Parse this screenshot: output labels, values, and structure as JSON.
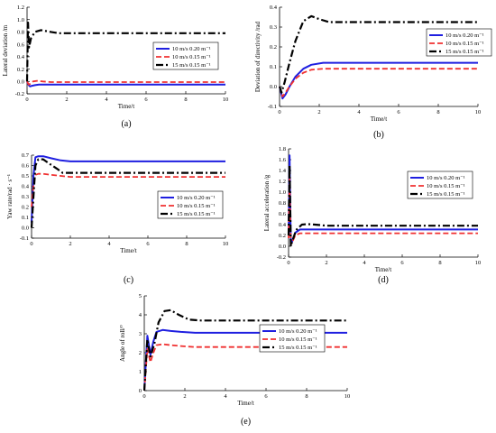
{
  "colors": {
    "s1": "#1f1fe0",
    "s2": "#f03030",
    "s3": "#000000"
  },
  "chart_data": [
    {
      "type": "line",
      "caption": "(a)",
      "xlabel": "Time/t",
      "ylabel": "Lateral deviation /m",
      "xlim": [
        0,
        10
      ],
      "ylim": [
        -0.2,
        1.2
      ],
      "xticks": [
        0,
        2,
        4,
        6,
        8,
        10
      ],
      "yticks": [
        -0.2,
        0.0,
        0.2,
        0.4,
        0.6,
        0.8,
        1.0,
        1.2
      ],
      "ytick_labels": [
        "-0.2",
        "0.0",
        "0.2",
        "0.4",
        "0.6",
        "0.8",
        "1.0",
        "1.2"
      ],
      "legend_position": "middle-right",
      "series": [
        {
          "name": "10 m/s 0.20 m⁻¹",
          "x": [
            0,
            0.08,
            0.15,
            0.25,
            0.4,
            0.6,
            1.0,
            2.0,
            10
          ],
          "y": [
            0,
            -0.06,
            -0.08,
            -0.07,
            -0.06,
            -0.05,
            -0.05,
            -0.05,
            -0.05
          ]
        },
        {
          "name": "10 m/s 0.15 m⁻¹",
          "x": [
            0,
            0.08,
            0.15,
            0.3,
            0.5,
            0.8,
            1.2,
            2.0,
            10
          ],
          "y": [
            0,
            -0.05,
            -0.04,
            0.0,
            0.01,
            0.0,
            -0.01,
            -0.01,
            -0.01
          ]
        },
        {
          "name": "15 m/s 0.15 m⁻¹",
          "x": [
            0,
            0.05,
            0.1,
            0.2,
            0.4,
            0.7,
            1.2,
            1.6,
            2.0,
            10
          ],
          "y": [
            0,
            0.95,
            0.55,
            0.7,
            0.8,
            0.83,
            0.8,
            0.78,
            0.78,
            0.78
          ]
        }
      ]
    },
    {
      "type": "line",
      "caption": "(b)",
      "xlabel": "Time/t",
      "ylabel": "Deviation of directivity /rad",
      "xlim": [
        0,
        10
      ],
      "ylim": [
        -0.1,
        0.4
      ],
      "xticks": [
        0,
        2,
        4,
        6,
        8,
        10
      ],
      "yticks": [
        -0.1,
        0.0,
        0.1,
        0.2,
        0.3,
        0.4
      ],
      "ytick_labels": [
        "-0.1",
        "0.0",
        "0.1",
        "0.2",
        "0.3",
        "0.4"
      ],
      "legend_position": "middle-right",
      "series": [
        {
          "name": "10 m/s 0.20 m⁻¹",
          "x": [
            0,
            0.15,
            0.3,
            0.5,
            0.8,
            1.2,
            1.6,
            2.2,
            3,
            10
          ],
          "y": [
            0,
            -0.06,
            -0.04,
            0.0,
            0.05,
            0.09,
            0.11,
            0.12,
            0.12,
            0.12
          ]
        },
        {
          "name": "10 m/s 0.15 m⁻¹",
          "x": [
            0,
            0.15,
            0.3,
            0.5,
            0.8,
            1.2,
            1.6,
            2.2,
            3,
            10
          ],
          "y": [
            0,
            -0.05,
            -0.03,
            0.0,
            0.04,
            0.07,
            0.085,
            0.09,
            0.09,
            0.09
          ]
        },
        {
          "name": "15 m/s 0.15 m⁻¹",
          "x": [
            0,
            0.1,
            0.25,
            0.5,
            0.8,
            1.2,
            1.6,
            2.0,
            2.5,
            3.5,
            10
          ],
          "y": [
            0,
            -0.03,
            0.02,
            0.12,
            0.23,
            0.33,
            0.355,
            0.34,
            0.325,
            0.325,
            0.325
          ]
        }
      ]
    },
    {
      "type": "line",
      "caption": "(c)",
      "xlabel": "Time/t",
      "ylabel": "Yaw rate/rad · s⁻¹",
      "xlim": [
        0,
        10
      ],
      "ylim": [
        -0.1,
        0.7
      ],
      "xticks": [
        0,
        2,
        4,
        6,
        8,
        10
      ],
      "yticks": [
        -0.1,
        0.0,
        0.1,
        0.2,
        0.3,
        0.4,
        0.5,
        0.6,
        0.7
      ],
      "ytick_labels": [
        "-0.1",
        "0.0",
        "0.1",
        "0.2",
        "0.3",
        "0.4",
        "0.5",
        "0.6",
        "0.7"
      ],
      "legend_position": "middle-right",
      "series": [
        {
          "name": "10 m/s 0.20 m⁻¹",
          "x": [
            0,
            0.1,
            0.2,
            0.35,
            0.6,
            1.0,
            1.5,
            2.0,
            10
          ],
          "y": [
            0.05,
            0.5,
            0.68,
            0.69,
            0.69,
            0.67,
            0.65,
            0.64,
            0.64
          ]
        },
        {
          "name": "10 m/s 0.15 m⁻¹",
          "x": [
            0,
            0.1,
            0.2,
            0.35,
            0.6,
            1.0,
            1.5,
            2.0,
            10
          ],
          "y": [
            0.2,
            0.4,
            0.51,
            0.52,
            0.52,
            0.51,
            0.5,
            0.49,
            0.49
          ]
        },
        {
          "name": "15 m/s 0.15 m⁻¹",
          "x": [
            0,
            0.1,
            0.2,
            0.35,
            0.6,
            0.9,
            1.3,
            1.6,
            2.0,
            10
          ],
          "y": [
            0.0,
            0.3,
            0.6,
            0.66,
            0.66,
            0.62,
            0.57,
            0.53,
            0.53,
            0.53
          ]
        }
      ]
    },
    {
      "type": "line",
      "caption": "(d)",
      "xlabel": "Time/t",
      "ylabel": "Lateral acceleration /g",
      "xlim": [
        0,
        10
      ],
      "ylim": [
        -0.2,
        1.8
      ],
      "xticks": [
        0,
        2,
        4,
        6,
        8,
        10
      ],
      "yticks": [
        -0.2,
        0.0,
        0.2,
        0.4,
        0.6,
        0.8,
        1.0,
        1.2,
        1.4,
        1.6,
        1.8
      ],
      "ytick_labels": [
        "-0.2",
        "0.0",
        "0.2",
        "0.4",
        "0.6",
        "0.8",
        "1.0",
        "1.2",
        "1.4",
        "1.6",
        "1.8"
      ],
      "legend_position": "middle-right",
      "series": [
        {
          "name": "10 m/s 0.20 m⁻¹",
          "x": [
            0,
            0.05,
            0.12,
            0.2,
            0.35,
            0.6,
            1.0,
            1.5,
            10
          ],
          "y": [
            0.2,
            1.68,
            0.05,
            0.1,
            0.25,
            0.31,
            0.31,
            0.31,
            0.31
          ]
        },
        {
          "name": "10 m/s 0.15 m⁻¹",
          "x": [
            0,
            0.05,
            0.12,
            0.2,
            0.35,
            0.6,
            1.0,
            1.5,
            10
          ],
          "y": [
            0.15,
            1.25,
            0.03,
            0.08,
            0.2,
            0.24,
            0.24,
            0.24,
            0.24
          ]
        },
        {
          "name": "15 m/s 0.15 m⁻¹",
          "x": [
            0,
            0.05,
            0.12,
            0.2,
            0.4,
            0.7,
            1.0,
            1.4,
            2.0,
            10
          ],
          "y": [
            0.2,
            1.5,
            0.0,
            0.1,
            0.3,
            0.4,
            0.41,
            0.4,
            0.38,
            0.38
          ]
        }
      ]
    },
    {
      "type": "line",
      "caption": "(e)",
      "xlabel": "Time/t",
      "ylabel": "Angle of roll/°",
      "xlim": [
        0,
        10
      ],
      "ylim": [
        0,
        5
      ],
      "xticks": [
        0,
        2,
        4,
        6,
        8,
        10
      ],
      "yticks": [
        0,
        1,
        2,
        3,
        4,
        5
      ],
      "ytick_labels": [
        "0",
        "1",
        "2",
        "3",
        "4",
        "5"
      ],
      "legend_position": "middle-right",
      "series": [
        {
          "name": "10 m/s 0.20 m⁻¹",
          "x": [
            0,
            0.15,
            0.3,
            0.45,
            0.6,
            0.9,
            1.3,
            1.8,
            2.5,
            10
          ],
          "y": [
            0,
            2.9,
            1.9,
            2.6,
            3.1,
            3.2,
            3.15,
            3.1,
            3.05,
            3.05
          ]
        },
        {
          "name": "10 m/s 0.15 m⁻¹",
          "x": [
            0,
            0.15,
            0.3,
            0.45,
            0.6,
            0.9,
            1.3,
            1.8,
            2.5,
            10
          ],
          "y": [
            0,
            2.2,
            1.5,
            2.0,
            2.4,
            2.45,
            2.4,
            2.35,
            2.3,
            2.3
          ]
        },
        {
          "name": "15 m/s 0.15 m⁻¹",
          "x": [
            0,
            0.15,
            0.3,
            0.5,
            0.7,
            1.0,
            1.3,
            1.7,
            2.2,
            2.8,
            10
          ],
          "y": [
            0,
            2.7,
            1.8,
            2.5,
            3.6,
            4.2,
            4.25,
            4.0,
            3.75,
            3.7,
            3.7
          ]
        }
      ]
    }
  ]
}
